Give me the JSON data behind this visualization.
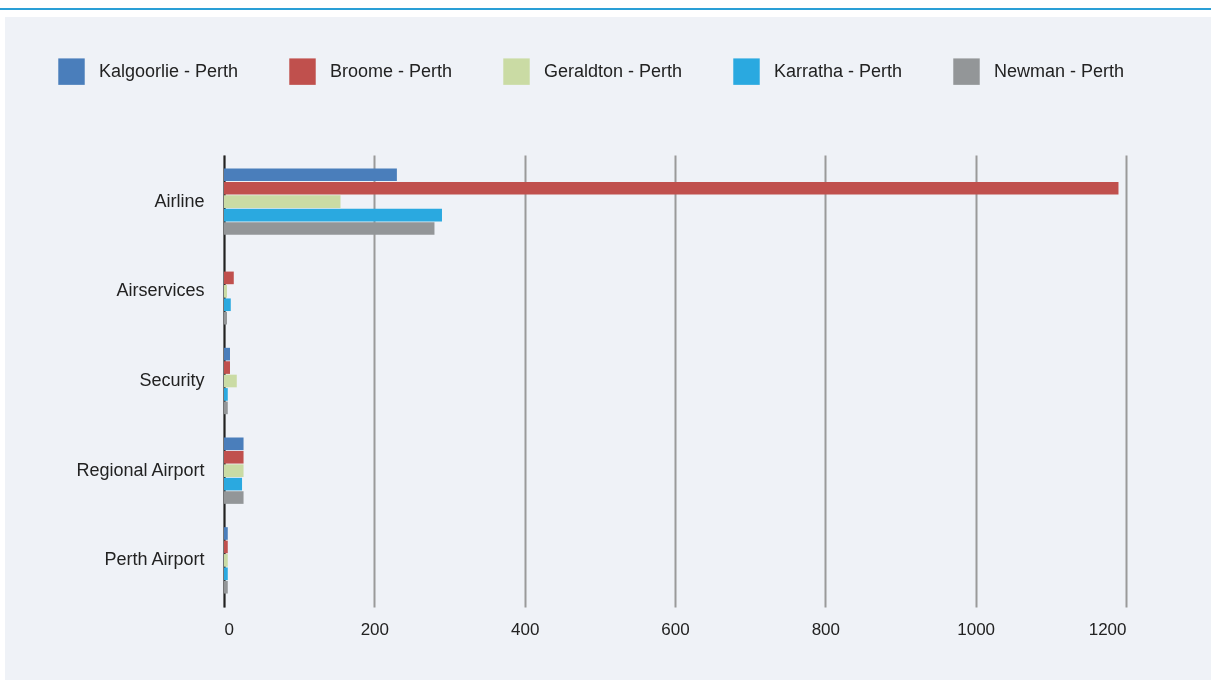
{
  "chart_data": {
    "type": "bar",
    "orientation": "horizontal",
    "categories": [
      "Airline",
      "Airservices",
      "Security",
      "Regional Airport",
      "Perth Airport"
    ],
    "series": [
      {
        "name": "Kalgoorlie - Perth",
        "color": "#4a7ebb",
        "values": [
          230,
          0,
          8,
          26,
          5
        ]
      },
      {
        "name": "Broome - Perth",
        "color": "#c0504d",
        "values": [
          1190,
          13,
          8,
          26,
          5
        ]
      },
      {
        "name": "Geraldton - Perth",
        "color": "#cadba4",
        "values": [
          155,
          4,
          17,
          26,
          5
        ]
      },
      {
        "name": "Karratha - Perth",
        "color": "#2aa9e0",
        "values": [
          290,
          9,
          5,
          24,
          5
        ]
      },
      {
        "name": "Newman - Perth",
        "color": "#939698",
        "values": [
          280,
          4,
          5,
          26,
          5
        ]
      }
    ],
    "xlim": [
      0,
      1200
    ],
    "xticks": [
      0,
      200,
      400,
      600,
      800,
      1000,
      1200
    ],
    "grid": "x",
    "legend": "top"
  }
}
